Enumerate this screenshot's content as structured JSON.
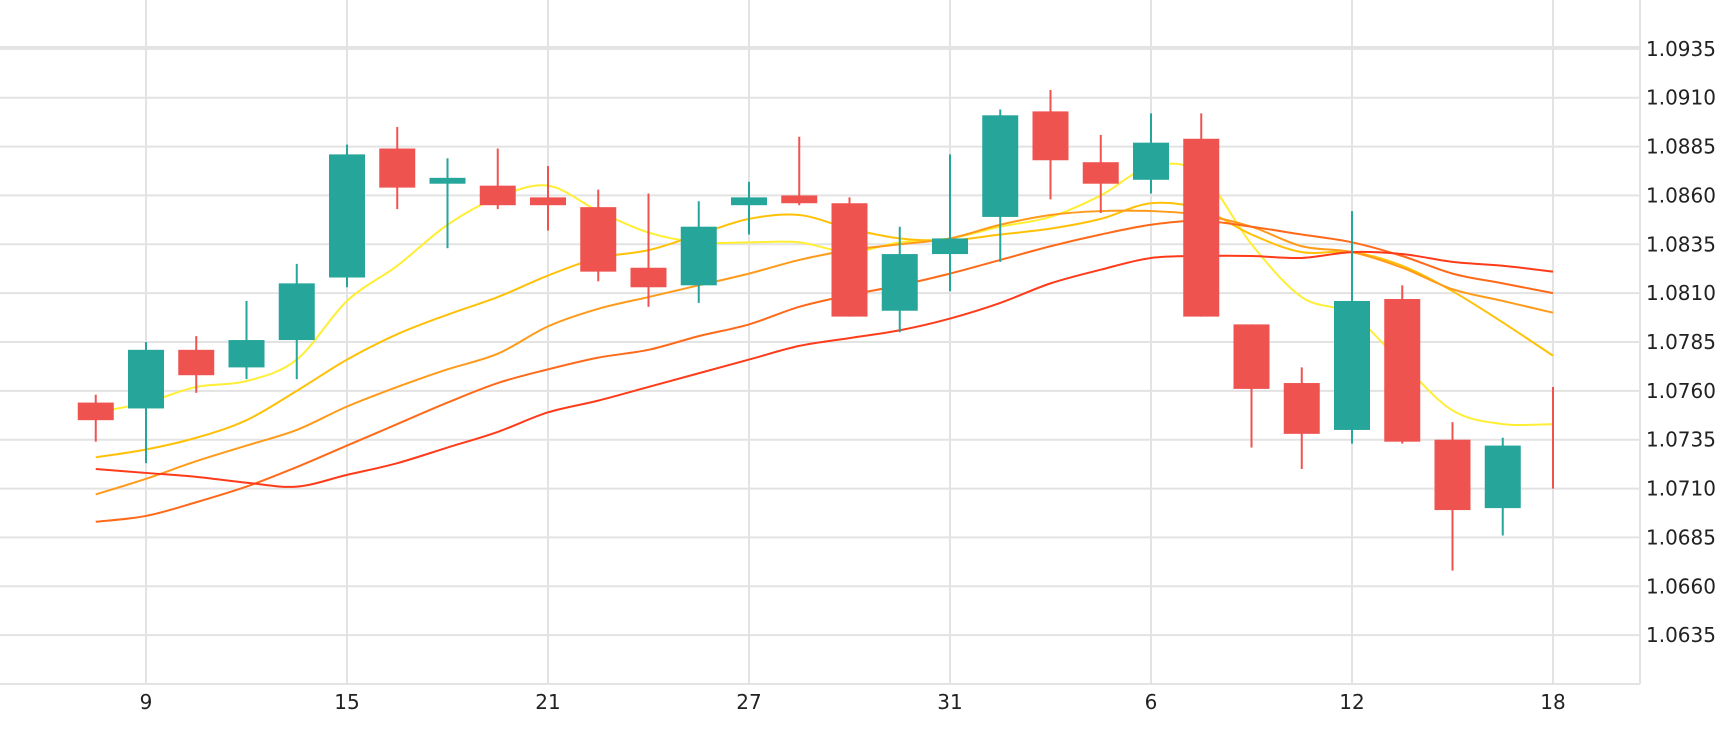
{
  "chart_data": {
    "type": "candlestick",
    "title": "",
    "xlabel": "",
    "ylabel": "",
    "grid": true,
    "legend": "none",
    "colors": {
      "up": "#26a69a",
      "down": "#ef5350",
      "grid": "#e3e3e3",
      "ma": [
        "#ffee33",
        "#ffc107",
        "#ff9a1a",
        "#ff6a1a",
        "#ff3b1a"
      ]
    },
    "ylim": [
      1.061,
      1.096
    ],
    "xlim": [
      -0.5,
      29.6
    ],
    "y_ticks": [
      "1.0635",
      "1.0660",
      "1.0685",
      "1.0710",
      "1.0735",
      "1.0760",
      "1.0785",
      "1.0810",
      "1.0835",
      "1.0860",
      "1.0885",
      "1.0910",
      "1.0935"
    ],
    "x_ticks": [
      {
        "label": "9",
        "index": 1
      },
      {
        "label": "15",
        "index": 5
      },
      {
        "label": "21",
        "index": 9
      },
      {
        "label": "27",
        "index": 13
      },
      {
        "label": "31",
        "index": 17
      },
      {
        "label": "6",
        "index": 21
      },
      {
        "label": "12",
        "index": 25
      },
      {
        "label": "18",
        "index": 29
      }
    ],
    "candles": [
      {
        "i": 0,
        "open": 1.0754,
        "close": 1.0745,
        "high": 1.0758,
        "low": 1.0734
      },
      {
        "i": 1,
        "open": 1.0751,
        "close": 1.0781,
        "high": 1.0785,
        "low": 1.0723
      },
      {
        "i": 2,
        "open": 1.0781,
        "close": 1.0768,
        "high": 1.0788,
        "low": 1.0759
      },
      {
        "i": 3,
        "open": 1.0772,
        "close": 1.0786,
        "high": 1.0806,
        "low": 1.0766
      },
      {
        "i": 4,
        "open": 1.0786,
        "close": 1.0815,
        "high": 1.0825,
        "low": 1.0766
      },
      {
        "i": 5,
        "open": 1.0818,
        "close": 1.0881,
        "high": 1.0886,
        "low": 1.0813
      },
      {
        "i": 6,
        "open": 1.0884,
        "close": 1.0864,
        "high": 1.0895,
        "low": 1.0853
      },
      {
        "i": 7,
        "open": 1.0866,
        "close": 1.0869,
        "high": 1.0879,
        "low": 1.0833
      },
      {
        "i": 8,
        "open": 1.0865,
        "close": 1.0855,
        "high": 1.0884,
        "low": 1.0853
      },
      {
        "i": 9,
        "open": 1.0859,
        "close": 1.0855,
        "high": 1.0875,
        "low": 1.0842
      },
      {
        "i": 10,
        "open": 1.0854,
        "close": 1.0821,
        "high": 1.0863,
        "low": 1.0816
      },
      {
        "i": 11,
        "open": 1.0823,
        "close": 1.0813,
        "high": 1.0861,
        "low": 1.0803
      },
      {
        "i": 12,
        "open": 1.0814,
        "close": 1.0844,
        "high": 1.0857,
        "low": 1.0805
      },
      {
        "i": 13,
        "open": 1.0855,
        "close": 1.0859,
        "high": 1.0867,
        "low": 1.084
      },
      {
        "i": 14,
        "open": 1.086,
        "close": 1.0856,
        "high": 1.089,
        "low": 1.0855
      },
      {
        "i": 15,
        "open": 1.0856,
        "close": 1.0798,
        "high": 1.0859,
        "low": 1.0798
      },
      {
        "i": 16,
        "open": 1.0801,
        "close": 1.083,
        "high": 1.0844,
        "low": 1.079
      },
      {
        "i": 17,
        "open": 1.083,
        "close": 1.0838,
        "high": 1.0881,
        "low": 1.0811
      },
      {
        "i": 18,
        "open": 1.0849,
        "close": 1.0901,
        "high": 1.0904,
        "low": 1.0826
      },
      {
        "i": 19,
        "open": 1.0903,
        "close": 1.0878,
        "high": 1.0914,
        "low": 1.0858
      },
      {
        "i": 20,
        "open": 1.0877,
        "close": 1.0866,
        "high": 1.0891,
        "low": 1.0851
      },
      {
        "i": 21,
        "open": 1.0868,
        "close": 1.0887,
        "high": 1.0902,
        "low": 1.0861
      },
      {
        "i": 22,
        "open": 1.0889,
        "close": 1.0798,
        "high": 1.0902,
        "low": 1.0798
      },
      {
        "i": 23,
        "open": 1.0794,
        "close": 1.0761,
        "high": 1.0794,
        "low": 1.0731
      },
      {
        "i": 24,
        "open": 1.0764,
        "close": 1.0738,
        "high": 1.0772,
        "low": 1.072
      },
      {
        "i": 25,
        "open": 1.074,
        "close": 1.0806,
        "high": 1.0852,
        "low": 1.0733
      },
      {
        "i": 26,
        "open": 1.0807,
        "close": 1.0734,
        "high": 1.0814,
        "low": 1.0733
      },
      {
        "i": 27,
        "open": 1.0735,
        "close": 1.0699,
        "high": 1.0744,
        "low": 1.0668
      },
      {
        "i": 28,
        "open": 1.07,
        "close": 1.0732,
        "high": 1.0736,
        "low": 1.0686
      },
      {
        "i": 29,
        "open": 1.076,
        "close": 1.071,
        "high": 1.0762,
        "low": 1.071
      }
    ],
    "ma_lines": [
      {
        "color": "#ffee33",
        "points": [
          [
            0,
            1.0749
          ],
          [
            1,
            1.0754
          ],
          [
            2,
            1.0762
          ],
          [
            3,
            1.0765
          ],
          [
            4,
            1.0776
          ],
          [
            5,
            1.0806
          ],
          [
            6,
            1.0824
          ],
          [
            7,
            1.0845
          ],
          [
            8,
            1.0859
          ],
          [
            9,
            1.0865
          ],
          [
            10,
            1.0852
          ],
          [
            11,
            1.0841
          ],
          [
            12,
            1.0836
          ],
          [
            13,
            1.0836
          ],
          [
            14,
            1.0836
          ],
          [
            15,
            1.0831
          ],
          [
            16,
            1.0836
          ],
          [
            17,
            1.0838
          ],
          [
            18,
            1.0844
          ],
          [
            19,
            1.0849
          ],
          [
            20,
            1.086
          ],
          [
            21,
            1.0875
          ],
          [
            22,
            1.0871
          ],
          [
            23,
            1.0835
          ],
          [
            24,
            1.0808
          ],
          [
            25,
            1.0799
          ],
          [
            26,
            1.0774
          ],
          [
            27,
            1.075
          ],
          [
            28,
            1.0743
          ],
          [
            29,
            1.0743
          ]
        ]
      },
      {
        "color": "#ffc107",
        "points": [
          [
            0,
            1.0726
          ],
          [
            1,
            1.073
          ],
          [
            2,
            1.0736
          ],
          [
            3,
            1.0745
          ],
          [
            4,
            1.076
          ],
          [
            5,
            1.0776
          ],
          [
            6,
            1.0789
          ],
          [
            7,
            1.0799
          ],
          [
            8,
            1.0808
          ],
          [
            9,
            1.0819
          ],
          [
            10,
            1.0828
          ],
          [
            11,
            1.0832
          ],
          [
            12,
            1.084
          ],
          [
            13,
            1.0848
          ],
          [
            14,
            1.085
          ],
          [
            15,
            1.0843
          ],
          [
            16,
            1.0838
          ],
          [
            17,
            1.0837
          ],
          [
            18,
            1.084
          ],
          [
            19,
            1.0843
          ],
          [
            20,
            1.0848
          ],
          [
            21,
            1.0856
          ],
          [
            22,
            1.0853
          ],
          [
            23,
            1.084
          ],
          [
            24,
            1.0831
          ],
          [
            25,
            1.0831
          ],
          [
            26,
            1.0824
          ],
          [
            27,
            1.0811
          ],
          [
            28,
            1.0795
          ],
          [
            29,
            1.0778
          ]
        ]
      },
      {
        "color": "#ff9a1a",
        "points": [
          [
            0,
            1.0707
          ],
          [
            1,
            1.0715
          ],
          [
            2,
            1.0724
          ],
          [
            3,
            1.0732
          ],
          [
            4,
            1.074
          ],
          [
            5,
            1.0752
          ],
          [
            6,
            1.0762
          ],
          [
            7,
            1.0771
          ],
          [
            8,
            1.0779
          ],
          [
            9,
            1.0793
          ],
          [
            10,
            1.0802
          ],
          [
            11,
            1.0808
          ],
          [
            12,
            1.0814
          ],
          [
            13,
            1.082
          ],
          [
            14,
            1.0827
          ],
          [
            15,
            1.0832
          ],
          [
            16,
            1.0835
          ],
          [
            17,
            1.0838
          ],
          [
            18,
            1.0845
          ],
          [
            19,
            1.085
          ],
          [
            20,
            1.0852
          ],
          [
            21,
            1.0852
          ],
          [
            22,
            1.085
          ],
          [
            23,
            1.0844
          ],
          [
            24,
            1.0834
          ],
          [
            25,
            1.0831
          ],
          [
            26,
            1.0823
          ],
          [
            27,
            1.0812
          ],
          [
            28,
            1.0806
          ],
          [
            29,
            1.08
          ]
        ]
      },
      {
        "color": "#ff6a1a",
        "points": [
          [
            0,
            1.0693
          ],
          [
            1,
            1.0696
          ],
          [
            2,
            1.0703
          ],
          [
            3,
            1.0711
          ],
          [
            4,
            1.0721
          ],
          [
            5,
            1.0732
          ],
          [
            6,
            1.0743
          ],
          [
            7,
            1.0754
          ],
          [
            8,
            1.0764
          ],
          [
            9,
            1.0771
          ],
          [
            10,
            1.0777
          ],
          [
            11,
            1.0781
          ],
          [
            12,
            1.0788
          ],
          [
            13,
            1.0794
          ],
          [
            14,
            1.0803
          ],
          [
            15,
            1.0809
          ],
          [
            16,
            1.0814
          ],
          [
            17,
            1.082
          ],
          [
            18,
            1.0827
          ],
          [
            19,
            1.0834
          ],
          [
            20,
            1.084
          ],
          [
            21,
            1.0845
          ],
          [
            22,
            1.0847
          ],
          [
            23,
            1.0844
          ],
          [
            24,
            1.084
          ],
          [
            25,
            1.0836
          ],
          [
            26,
            1.0829
          ],
          [
            27,
            1.082
          ],
          [
            28,
            1.0815
          ],
          [
            29,
            1.081
          ]
        ]
      },
      {
        "color": "#ff3b1a",
        "points": [
          [
            0,
            1.072
          ],
          [
            1,
            1.0718
          ],
          [
            2,
            1.0716
          ],
          [
            3,
            1.0713
          ],
          [
            4,
            1.0711
          ],
          [
            5,
            1.0717
          ],
          [
            6,
            1.0723
          ],
          [
            7,
            1.0731
          ],
          [
            8,
            1.0739
          ],
          [
            9,
            1.0749
          ],
          [
            10,
            1.0755
          ],
          [
            11,
            1.0762
          ],
          [
            12,
            1.0769
          ],
          [
            13,
            1.0776
          ],
          [
            14,
            1.0783
          ],
          [
            15,
            1.0787
          ],
          [
            16,
            1.0791
          ],
          [
            17,
            1.0797
          ],
          [
            18,
            1.0805
          ],
          [
            19,
            1.0815
          ],
          [
            20,
            1.0822
          ],
          [
            21,
            1.0828
          ],
          [
            22,
            1.0829
          ],
          [
            23,
            1.0829
          ],
          [
            24,
            1.0828
          ],
          [
            25,
            1.0831
          ],
          [
            26,
            1.083
          ],
          [
            27,
            1.0826
          ],
          [
            28,
            1.0824
          ],
          [
            29,
            1.0821
          ]
        ]
      }
    ]
  }
}
